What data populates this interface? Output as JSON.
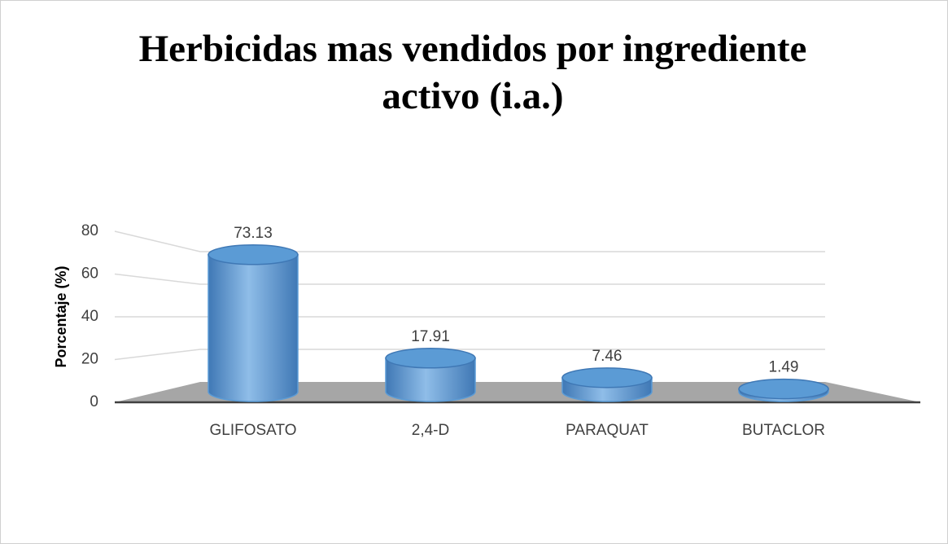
{
  "chart_data": {
    "type": "bar",
    "title": "Herbicidas mas  vendidos por ingrediente activo (i.a.)",
    "y_label": "Porcentaje (%)",
    "categories": [
      "GLIFOSATO",
      "2,4-D",
      "PARAQUAT",
      "BUTACLOR"
    ],
    "values": [
      73.13,
      17.91,
      7.46,
      1.49
    ],
    "color": "#5b9bd5",
    "ylim": [
      0,
      80
    ],
    "yticks": [
      0,
      20,
      40,
      60,
      80
    ],
    "grid": true
  }
}
